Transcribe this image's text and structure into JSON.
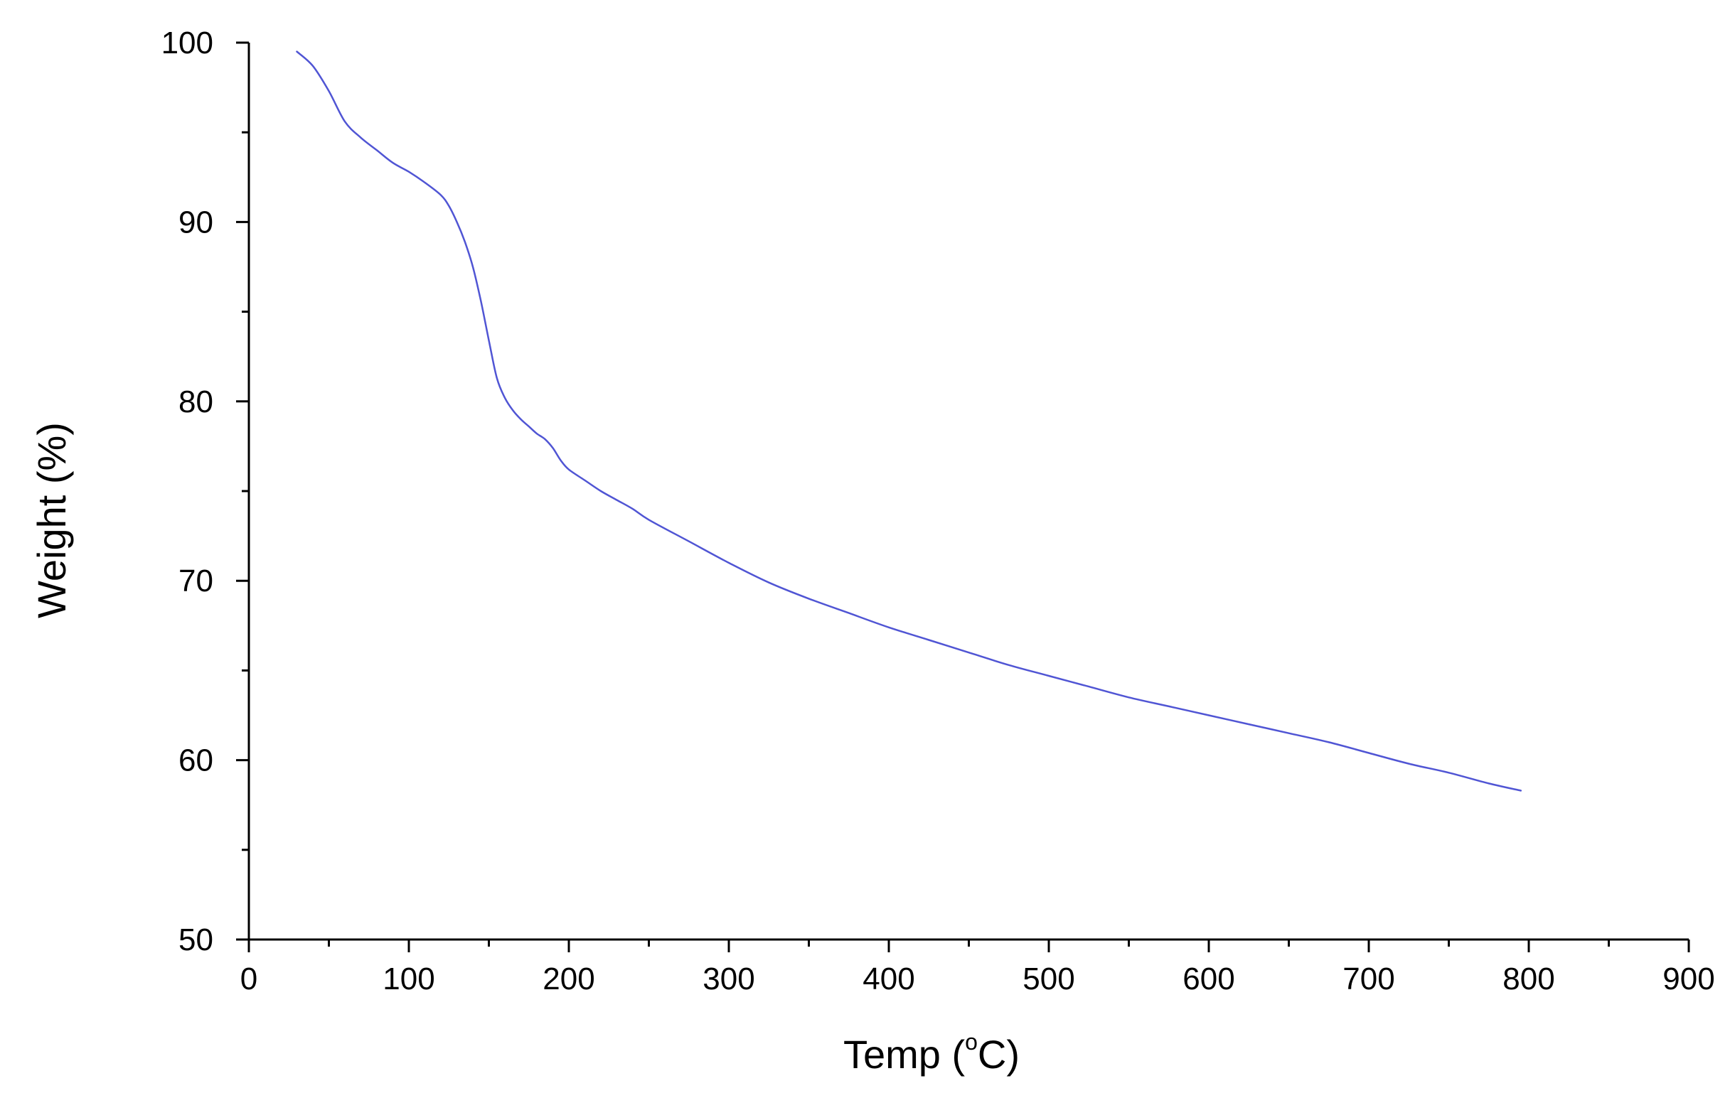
{
  "chart_data": {
    "type": "line",
    "title": "",
    "xlabel": "Temp (°C)",
    "xlabel_parts": {
      "prefix": "Temp (",
      "degree": "o",
      "suffix": "C)"
    },
    "ylabel": "Weight (%)",
    "xlim": [
      0,
      900
    ],
    "ylim": [
      50,
      100
    ],
    "x_ticks": [
      0,
      100,
      200,
      300,
      400,
      500,
      600,
      700,
      800,
      900
    ],
    "x_tick_labels": [
      "0",
      "100",
      "200",
      "300",
      "400",
      "500",
      "600",
      "700",
      "800",
      "900"
    ],
    "y_ticks": [
      50,
      60,
      70,
      80,
      90,
      100
    ],
    "y_tick_labels": [
      "50",
      "60",
      "70",
      "80",
      "90",
      "100"
    ],
    "x_minor_step": 50,
    "y_minor_step": 5,
    "grid": false,
    "legend": "none",
    "colors": {
      "line": "#5055d4",
      "axis": "#000000"
    },
    "series": [
      {
        "x": [
          30,
          40,
          50,
          60,
          70,
          80,
          90,
          100,
          110,
          120,
          125,
          130,
          135,
          140,
          145,
          150,
          155,
          160,
          165,
          170,
          175,
          180,
          185,
          190,
          195,
          200,
          210,
          220,
          230,
          240,
          250,
          275,
          300,
          325,
          350,
          375,
          400,
          425,
          450,
          475,
          500,
          525,
          550,
          575,
          600,
          625,
          650,
          675,
          700,
          725,
          750,
          775,
          795
        ],
        "y": [
          99.5,
          98.7,
          97.3,
          95.6,
          94.7,
          94.0,
          93.3,
          92.8,
          92.2,
          91.5,
          90.9,
          90.0,
          88.9,
          87.5,
          85.6,
          83.4,
          81.3,
          80.2,
          79.5,
          79.0,
          78.6,
          78.2,
          77.9,
          77.4,
          76.7,
          76.2,
          75.6,
          75.0,
          74.5,
          74.0,
          73.4,
          72.2,
          71.0,
          69.9,
          69.0,
          68.2,
          67.4,
          66.7,
          66.0,
          65.3,
          64.7,
          64.1,
          63.5,
          63.0,
          62.5,
          62.0,
          61.5,
          61.0,
          60.4,
          59.8,
          59.3,
          58.7,
          58.3
        ]
      }
    ]
  }
}
